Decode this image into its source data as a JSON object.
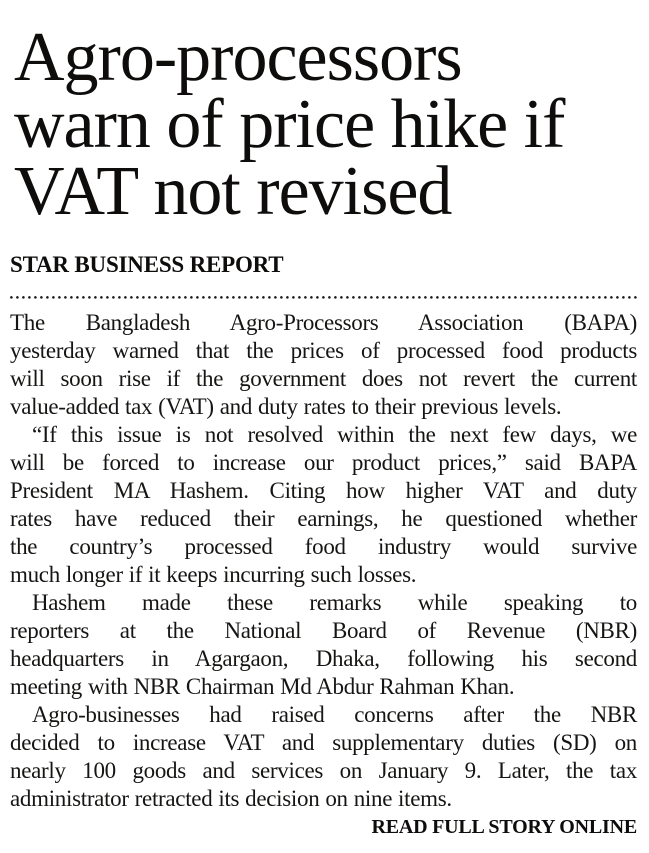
{
  "page": {
    "colors": {
      "background": "#ffffff",
      "text": "#161513",
      "headline": "#0e0d0c"
    }
  },
  "article": {
    "headline_lines": [
      "Agro-processors",
      "warn of price hike if",
      "VAT not revised"
    ],
    "headline_full": "Agro-processors warn of price hike if VAT not revised",
    "byline": "STAR BUSINESS REPORT",
    "paragraphs": [
      {
        "indent_first_line": false,
        "lines": [
          "The Bangladesh Agro-Processors Association (BAPA)",
          "yesterday warned that the prices of processed food products",
          "will soon rise if the government does not revert the current",
          "value-added tax (VAT) and duty rates to their previous levels."
        ]
      },
      {
        "indent_first_line": true,
        "lines": [
          "“If this issue is not resolved within the next few days, we",
          "will be forced to increase our product prices,” said BAPA",
          "President MA Hashem. Citing how higher VAT and duty",
          "rates have reduced their earnings, he questioned whether",
          "the country’s processed food industry would survive",
          "much longer if it keeps incurring such losses."
        ]
      },
      {
        "indent_first_line": true,
        "lines": [
          "Hashem made these remarks while speaking to",
          "reporters at the National Board of Revenue (NBR)",
          "headquarters in Agargaon, Dhaka, following his second",
          "meeting with NBR Chairman Md Abdur Rahman Khan."
        ]
      },
      {
        "indent_first_line": true,
        "lines": [
          "Agro-businesses had raised concerns after the NBR",
          "decided to increase VAT and supplementary duties (SD) on",
          "nearly 100 goods and services on January 9. Later, the tax",
          "administrator retracted its decision on nine items."
        ]
      }
    ],
    "footer_link": "READ FULL STORY ONLINE"
  }
}
